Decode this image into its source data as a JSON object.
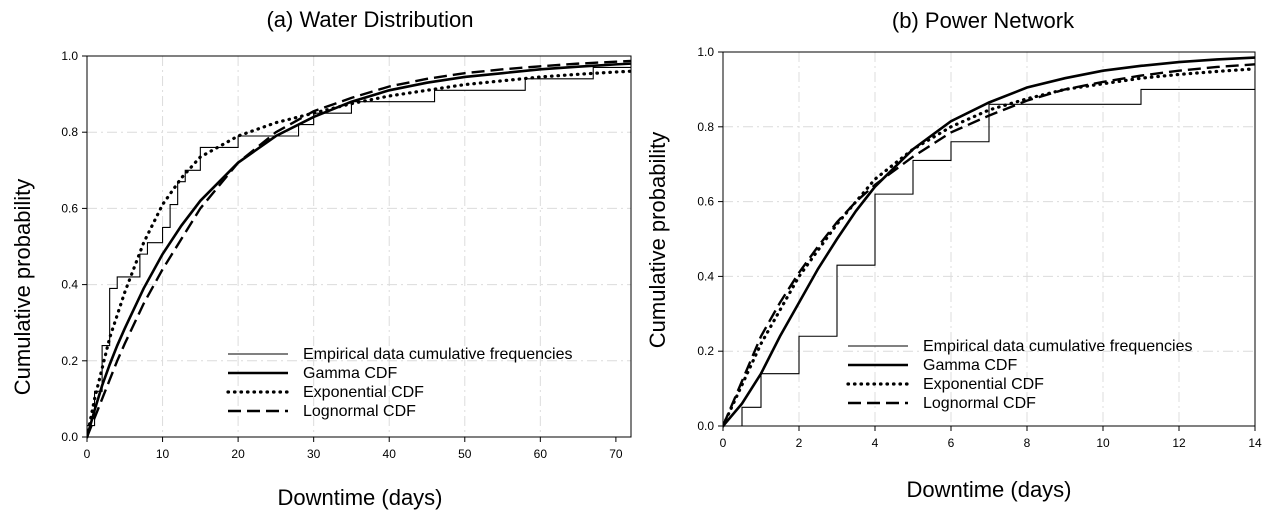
{
  "chart_data": [
    {
      "type": "line",
      "title": "(a) Water Distribution",
      "xlabel": "Downtime (days)",
      "ylabel": "Cumulative probability",
      "xlim": [
        0,
        72
      ],
      "ylim": [
        0,
        1.0
      ],
      "xticks": [
        "0",
        "10",
        "20",
        "30",
        "40",
        "50",
        "60",
        "70"
      ],
      "yticks": [
        "0.0",
        "0.2",
        "0.4",
        "0.6",
        "0.8",
        "1.0"
      ],
      "grid": true,
      "legend_position": "bottom-right",
      "series": [
        {
          "name": "Empirical data cumulative frequencies",
          "style": "step-thin",
          "x": [
            0,
            1,
            2,
            3,
            4,
            5,
            7,
            8,
            10,
            11,
            12,
            13,
            15,
            18,
            20,
            25,
            28,
            30,
            35,
            46,
            58,
            67,
            72
          ],
          "y": [
            0.03,
            0.12,
            0.24,
            0.39,
            0.42,
            0.42,
            0.48,
            0.51,
            0.55,
            0.61,
            0.67,
            0.7,
            0.76,
            0.76,
            0.79,
            0.79,
            0.82,
            0.85,
            0.88,
            0.91,
            0.94,
            0.97,
            0.97
          ]
        },
        {
          "name": "Gamma CDF",
          "style": "solid-thick",
          "x": [
            0,
            1,
            2,
            3,
            4,
            5,
            7.5,
            10,
            12.5,
            15,
            20,
            25,
            30,
            35,
            40,
            45,
            50,
            55,
            60,
            65,
            70,
            72
          ],
          "y": [
            0,
            0.07,
            0.135,
            0.19,
            0.24,
            0.285,
            0.39,
            0.48,
            0.555,
            0.62,
            0.72,
            0.79,
            0.84,
            0.88,
            0.91,
            0.93,
            0.945,
            0.955,
            0.965,
            0.972,
            0.978,
            0.98
          ]
        },
        {
          "name": "Exponential CDF",
          "style": "dotted",
          "x": [
            0,
            1,
            2,
            3,
            4,
            5,
            7.5,
            10,
            12.5,
            15,
            20,
            25,
            30,
            35,
            40,
            45,
            50,
            55,
            60,
            65,
            70,
            72
          ],
          "y": [
            0,
            0.1,
            0.18,
            0.26,
            0.32,
            0.38,
            0.51,
            0.61,
            0.68,
            0.735,
            0.79,
            0.825,
            0.85,
            0.875,
            0.895,
            0.91,
            0.925,
            0.935,
            0.945,
            0.952,
            0.958,
            0.96
          ]
        },
        {
          "name": "Lognormal CDF",
          "style": "dashed",
          "x": [
            0,
            1,
            2,
            3,
            4,
            5,
            7.5,
            10,
            12.5,
            15,
            20,
            25,
            30,
            35,
            40,
            45,
            50,
            55,
            60,
            65,
            70,
            72
          ],
          "y": [
            0,
            0.05,
            0.1,
            0.15,
            0.2,
            0.245,
            0.35,
            0.44,
            0.52,
            0.6,
            0.72,
            0.8,
            0.855,
            0.89,
            0.92,
            0.94,
            0.955,
            0.965,
            0.973,
            0.98,
            0.985,
            0.987
          ]
        }
      ]
    },
    {
      "type": "line",
      "title": "(b) Power Network",
      "xlabel": "Downtime (days)",
      "ylabel": "Cumulative probability",
      "xlim": [
        0,
        14
      ],
      "ylim": [
        0,
        1.0
      ],
      "xticks": [
        "0",
        "2",
        "4",
        "6",
        "8",
        "10",
        "12",
        "14"
      ],
      "yticks": [
        "0.0",
        "0.2",
        "0.4",
        "0.6",
        "0.8",
        "1.0"
      ],
      "grid": true,
      "legend_position": "bottom-right",
      "series": [
        {
          "name": "Empirical data cumulative frequencies",
          "style": "step-thin",
          "x": [
            0,
            0.5,
            1,
            2,
            3,
            4,
            5,
            6,
            7,
            8,
            11,
            14
          ],
          "y": [
            0,
            0.05,
            0.14,
            0.24,
            0.43,
            0.62,
            0.71,
            0.76,
            0.86,
            0.86,
            0.9,
            0.95
          ]
        },
        {
          "name": "Gamma CDF",
          "style": "solid-thick",
          "x": [
            0,
            0.5,
            1,
            1.5,
            2,
            2.5,
            3,
            3.5,
            4,
            5,
            6,
            7,
            8,
            9,
            10,
            11,
            12,
            13,
            14
          ],
          "y": [
            0,
            0.06,
            0.14,
            0.24,
            0.33,
            0.42,
            0.5,
            0.575,
            0.64,
            0.74,
            0.815,
            0.865,
            0.905,
            0.93,
            0.95,
            0.963,
            0.973,
            0.98,
            0.985
          ]
        },
        {
          "name": "Exponential CDF",
          "style": "dotted",
          "x": [
            0,
            0.5,
            1,
            1.5,
            2,
            2.5,
            3,
            3.5,
            4,
            5,
            6,
            7,
            8,
            9,
            10,
            11,
            12,
            13,
            14
          ],
          "y": [
            0,
            0.11,
            0.22,
            0.31,
            0.4,
            0.47,
            0.54,
            0.6,
            0.66,
            0.74,
            0.8,
            0.845,
            0.875,
            0.9,
            0.915,
            0.93,
            0.94,
            0.948,
            0.955
          ]
        },
        {
          "name": "Lognormal CDF",
          "style": "dashed",
          "x": [
            0,
            0.5,
            1,
            1.5,
            2,
            2.5,
            3,
            3.5,
            4,
            5,
            6,
            7,
            8,
            9,
            10,
            11,
            12,
            13,
            14
          ],
          "y": [
            0,
            0.12,
            0.24,
            0.33,
            0.41,
            0.48,
            0.545,
            0.6,
            0.645,
            0.72,
            0.785,
            0.83,
            0.87,
            0.9,
            0.92,
            0.937,
            0.95,
            0.96,
            0.967
          ]
        }
      ]
    }
  ]
}
